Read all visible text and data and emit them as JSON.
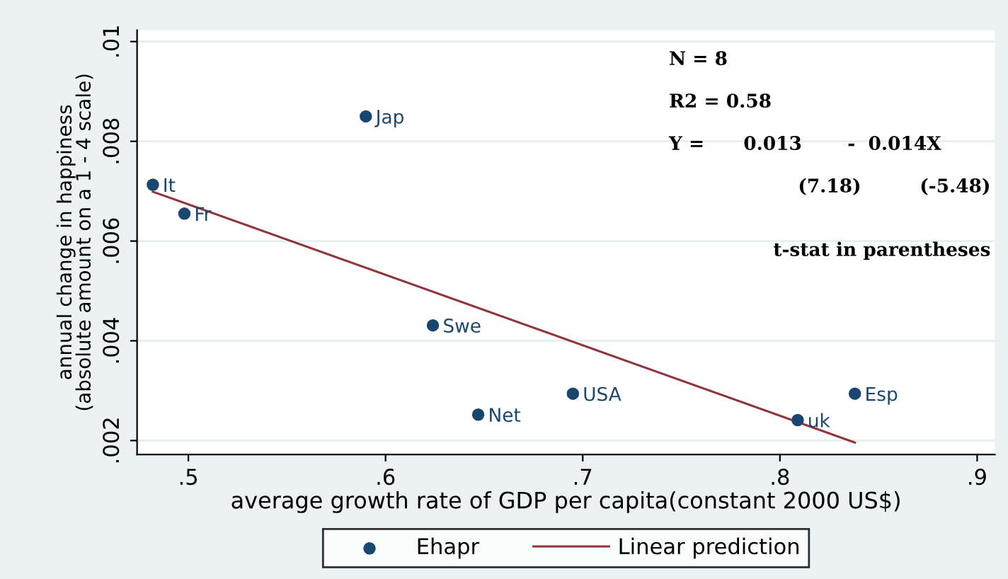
{
  "chart_data": {
    "type": "scatter",
    "xlabel": "average growth rate of GDP per capita(constant 2000 US$)",
    "ylabel": "annual change in happiness\n(absolute amount on a 1 - 4 scale)",
    "series": [
      {
        "name": "Ehapr",
        "color": "#1a476f",
        "marker": "circle",
        "x": [
          0.482,
          0.498,
          0.59,
          0.624,
          0.647,
          0.695,
          0.809,
          0.838
        ],
        "values": [
          0.00713,
          0.00655,
          0.0085,
          0.00431,
          0.00252,
          0.00294,
          0.00241,
          0.00294
        ]
      },
      {
        "name": "Linear prediction",
        "type": "line",
        "color": "#90353b",
        "marker": "none",
        "x": [
          0.482,
          0.838
        ],
        "values": [
          0.00699,
          0.00196
        ]
      }
    ],
    "annotations": [
      {
        "text": "It",
        "x": 0.482,
        "y": 0.00713
      },
      {
        "text": "Fr",
        "x": 0.498,
        "y": 0.00655
      },
      {
        "text": "Jap",
        "x": 0.59,
        "y": 0.0085
      },
      {
        "text": "Swe",
        "x": 0.624,
        "y": 0.00431
      },
      {
        "text": "Net",
        "x": 0.647,
        "y": 0.00252
      },
      {
        "text": "USA",
        "x": 0.695,
        "y": 0.00294
      },
      {
        "text": "uk",
        "x": 0.809,
        "y": 0.00241
      },
      {
        "text": "Esp",
        "x": 0.838,
        "y": 0.00294
      },
      "N = 8",
      "R2 = 0.58",
      "Y =      0.013       -  0.014X",
      "(7.18)         (-5.48)",
      "t-stat in parentheses"
    ],
    "xlim": [
      0.474,
      0.909
    ],
    "xticks": [
      {
        "value": 0.5,
        "label": ".5"
      },
      {
        "value": 0.6,
        "label": ".6"
      },
      {
        "value": 0.7,
        "label": ".7"
      },
      {
        "value": 0.8,
        "label": ".8"
      },
      {
        "value": 0.9,
        "label": ".9"
      }
    ],
    "ylim": [
      0.00172,
      0.01023
    ],
    "yticks": [
      {
        "value": 0.002,
        "label": ".002"
      },
      {
        "value": 0.004,
        "label": ".004"
      },
      {
        "value": 0.006,
        "label": ".006"
      },
      {
        "value": 0.008,
        "label": ".008"
      },
      {
        "value": 0.01,
        "label": ".01"
      }
    ],
    "grid": "y",
    "legend": "bottom"
  }
}
